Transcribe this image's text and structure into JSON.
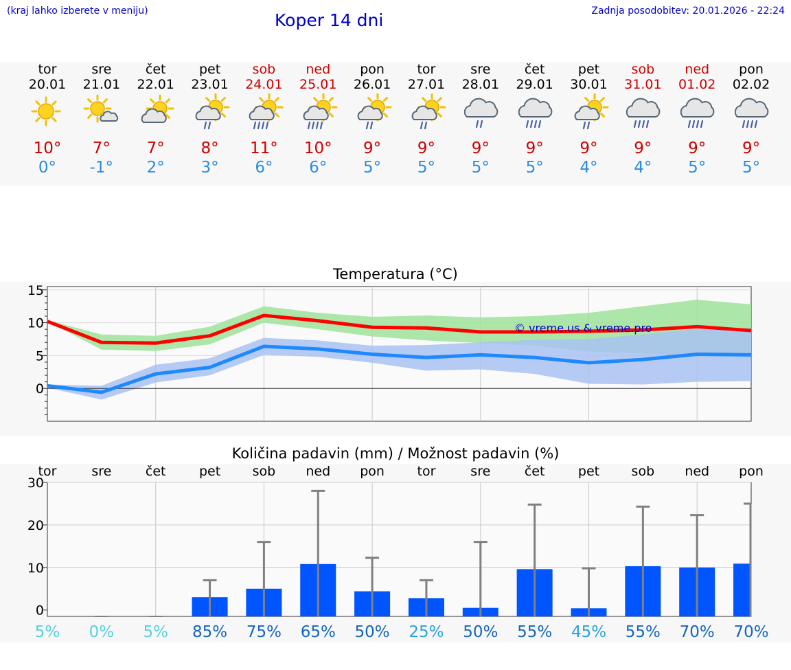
{
  "header": {
    "hint": "(kraj lahko izberete v meniju)",
    "title": "Koper 14 dni",
    "updated": "Zadnja posodobitev: 20.01.2026 - 22:24"
  },
  "days": [
    {
      "name": "tor",
      "date": "20.01",
      "weekend": false,
      "icon": "sunny-icon",
      "max": "10°",
      "min": "0°"
    },
    {
      "name": "sre",
      "date": "21.01",
      "weekend": false,
      "icon": "sun-cloud-icon",
      "max": "7°",
      "min": "-1°"
    },
    {
      "name": "čet",
      "date": "22.01",
      "weekend": false,
      "icon": "cloud-sun-icon",
      "max": "7°",
      "min": "2°"
    },
    {
      "name": "pet",
      "date": "23.01",
      "weekend": false,
      "icon": "sun-cloud-rain-icon",
      "max": "8°",
      "min": "3°"
    },
    {
      "name": "sob",
      "date": "24.01",
      "weekend": true,
      "icon": "sun-cloud-heavy-rain-icon",
      "max": "11°",
      "min": "6°"
    },
    {
      "name": "ned",
      "date": "25.01",
      "weekend": true,
      "icon": "sun-cloud-heavy-rain-icon",
      "max": "10°",
      "min": "6°"
    },
    {
      "name": "pon",
      "date": "26.01",
      "weekend": false,
      "icon": "sun-cloud-rain-icon",
      "max": "9°",
      "min": "5°"
    },
    {
      "name": "tor",
      "date": "27.01",
      "weekend": false,
      "icon": "sun-cloud-rain-icon",
      "max": "9°",
      "min": "5°"
    },
    {
      "name": "sre",
      "date": "28.01",
      "weekend": false,
      "icon": "cloud-rain-icon",
      "max": "9°",
      "min": "5°"
    },
    {
      "name": "čet",
      "date": "29.01",
      "weekend": false,
      "icon": "cloud-heavy-rain-icon",
      "max": "9°",
      "min": "5°"
    },
    {
      "name": "pet",
      "date": "30.01",
      "weekend": false,
      "icon": "sun-cloud-rain-icon",
      "max": "9°",
      "min": "4°"
    },
    {
      "name": "sob",
      "date": "31.01",
      "weekend": true,
      "icon": "cloud-heavy-rain-icon",
      "max": "9°",
      "min": "4°"
    },
    {
      "name": "ned",
      "date": "01.02",
      "weekend": true,
      "icon": "cloud-heavy-rain-icon",
      "max": "9°",
      "min": "5°"
    },
    {
      "name": "pon",
      "date": "02.02",
      "weekend": false,
      "icon": "cloud-heavy-rain-icon",
      "max": "9°",
      "min": "5°"
    }
  ],
  "colors": {
    "max": "#ff0000",
    "min": "#1e88ff",
    "maxBand": "#9de29a",
    "minBand": "#a8c2f2",
    "bar": "#0055ff",
    "err": "#808080"
  },
  "chart_data": [
    {
      "type": "line",
      "title": "Temperatura (°C)",
      "xlabel": "",
      "ylabel": "",
      "x": [
        0,
        1,
        2,
        3,
        4,
        5,
        6,
        7,
        8,
        9,
        10,
        11,
        12,
        13
      ],
      "ylim": [
        -5,
        15.5
      ],
      "yticks": [
        "15",
        "10",
        "5",
        "0"
      ],
      "watermark": "© vreme.us & vreme.pro",
      "series": [
        {
          "name": "max",
          "values": [
            10.2,
            7.0,
            6.9,
            8.0,
            11.1,
            10.3,
            9.3,
            9.2,
            8.6,
            8.6,
            8.7,
            8.9,
            9.4,
            8.8
          ]
        },
        {
          "name": "min",
          "values": [
            0.4,
            -0.6,
            2.2,
            3.2,
            6.4,
            6.0,
            5.2,
            4.7,
            5.1,
            4.7,
            3.9,
            4.4,
            5.2,
            5.1
          ]
        },
        {
          "name": "max-range-low",
          "values": [
            10.2,
            5.9,
            5.7,
            6.7,
            10.0,
            9.0,
            7.9,
            7.3,
            6.9,
            6.5,
            5.6,
            5.3,
            4.9,
            4.7
          ]
        },
        {
          "name": "max-range-high",
          "values": [
            10.4,
            8.2,
            8.0,
            9.4,
            12.5,
            11.5,
            10.9,
            11.1,
            10.8,
            11.0,
            11.5,
            12.5,
            13.5,
            12.8
          ]
        },
        {
          "name": "min-range-low",
          "values": [
            0.1,
            -1.7,
            0.9,
            2.0,
            5.1,
            4.8,
            3.9,
            2.7,
            2.9,
            2.2,
            0.7,
            0.6,
            1.0,
            1.1
          ]
        },
        {
          "name": "min-range-high",
          "values": [
            0.6,
            0.4,
            3.6,
            4.6,
            7.7,
            7.3,
            6.5,
            6.6,
            7.0,
            7.4,
            7.5,
            8.2,
            9.1,
            9.2
          ]
        }
      ]
    },
    {
      "type": "bar",
      "title": "Količina padavin (mm) / Možnost padavin (%)",
      "categories": [
        "tor",
        "sre",
        "čet",
        "pet",
        "sob",
        "ned",
        "pon",
        "tor",
        "sre",
        "čet",
        "pet",
        "sob",
        "ned",
        "pon"
      ],
      "ylim": [
        -1.5,
        30
      ],
      "yticks": [
        "30",
        "20",
        "10",
        "0"
      ],
      "series": [
        {
          "name": "precipitation_mm",
          "values": [
            0,
            0,
            0,
            3.0,
            5.0,
            10.8,
            4.4,
            2.8,
            0.5,
            9.6,
            0.4,
            10.3,
            10.0,
            10.9
          ]
        },
        {
          "name": "precipitation_max_mm",
          "values": [
            0,
            0,
            0,
            7.0,
            16.0,
            28.0,
            12.3,
            7.0,
            16.0,
            24.8,
            9.8,
            24.3,
            22.3,
            25.0
          ]
        }
      ],
      "probability_labels": [
        "5%",
        "0%",
        "5%",
        "85%",
        "75%",
        "65%",
        "50%",
        "25%",
        "50%",
        "55%",
        "45%",
        "55%",
        "70%",
        "70%"
      ],
      "probability_values": [
        5,
        0,
        5,
        85,
        75,
        65,
        50,
        25,
        50,
        55,
        45,
        55,
        70,
        70
      ]
    }
  ]
}
